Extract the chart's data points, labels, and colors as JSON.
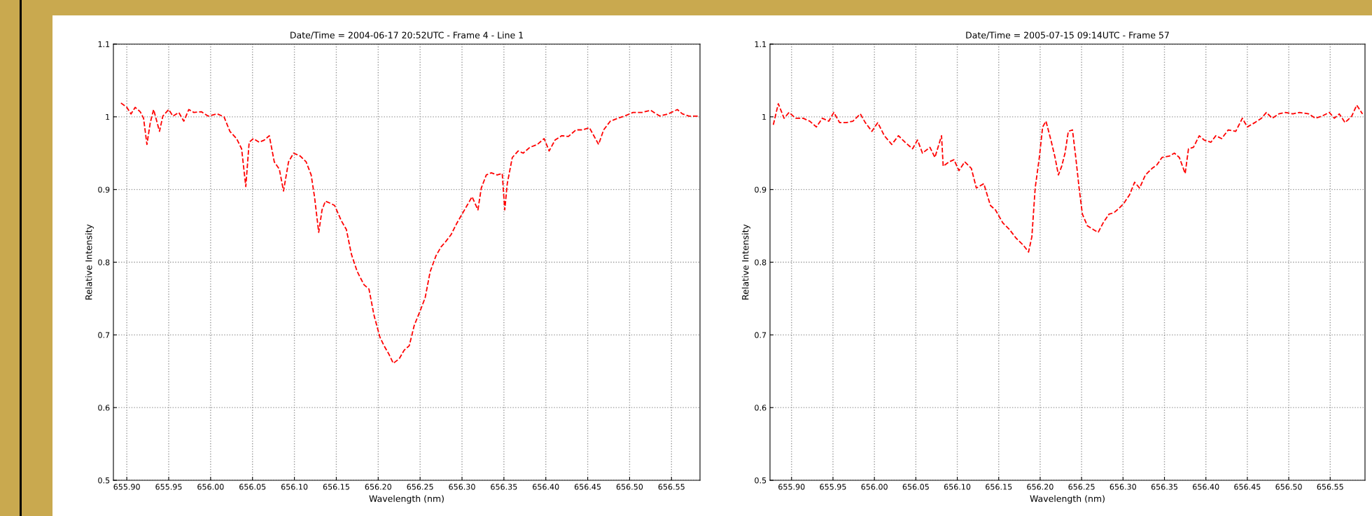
{
  "chart_data": [
    {
      "type": "line",
      "title": "Date/Time = 2004-06-17 20:52UTC - Frame 4 - Line 1",
      "xlabel": "Wavelength (nm)",
      "ylabel": "Relative Intensity",
      "grid": true,
      "line_style": "dashed",
      "xlim": [
        655.884,
        656.584
      ],
      "ylim": [
        0.5,
        1.1
      ],
      "xticks": [
        {
          "value": 655.9,
          "label": "655.90"
        },
        {
          "value": 655.95,
          "label": "655.95"
        },
        {
          "value": 656.0,
          "label": "656.00"
        },
        {
          "value": 656.05,
          "label": "656.05"
        },
        {
          "value": 656.1,
          "label": "656.10"
        },
        {
          "value": 656.15,
          "label": "656.15"
        },
        {
          "value": 656.2,
          "label": "656.20"
        },
        {
          "value": 656.25,
          "label": "656.25"
        },
        {
          "value": 656.3,
          "label": "656.30"
        },
        {
          "value": 656.35,
          "label": "656.35"
        },
        {
          "value": 656.4,
          "label": "656.40"
        },
        {
          "value": 656.45,
          "label": "656.45"
        },
        {
          "value": 656.5,
          "label": "656.50"
        },
        {
          "value": 656.55,
          "label": "656.55"
        }
      ],
      "yticks": [
        0.5,
        0.6,
        0.7,
        0.8,
        0.9,
        1,
        1.1
      ],
      "series": [
        {
          "color": "#ff0000",
          "x": [
            655.893,
            655.9,
            655.905,
            655.91,
            655.916,
            655.92,
            655.924,
            655.928,
            655.932,
            655.939,
            655.943,
            655.95,
            655.955,
            655.962,
            655.968,
            655.974,
            655.98,
            655.989,
            655.997,
            656.008,
            656.016,
            656.023,
            656.031,
            656.037,
            656.042,
            656.046,
            656.051,
            656.058,
            656.064,
            656.07,
            656.076,
            656.082,
            656.087,
            656.093,
            656.099,
            656.107,
            656.114,
            656.12,
            656.124,
            656.129,
            656.133,
            656.137,
            656.143,
            656.148,
            656.156,
            656.162,
            656.168,
            656.175,
            656.183,
            656.189,
            656.195,
            656.202,
            656.207,
            656.213,
            656.218,
            656.225,
            656.231,
            656.237,
            656.243,
            656.25,
            656.256,
            656.262,
            656.269,
            656.275,
            656.281,
            656.287,
            656.294,
            656.3,
            656.306,
            656.312,
            656.319,
            656.323,
            656.329,
            656.335,
            656.342,
            656.348,
            656.351,
            656.354,
            656.36,
            656.367,
            656.373,
            656.381,
            656.39,
            656.398,
            656.404,
            656.411,
            656.419,
            656.427,
            656.436,
            656.444,
            656.452,
            656.463,
            656.469,
            656.477,
            656.486,
            656.494,
            656.504,
            656.515,
            656.525,
            656.536,
            656.546,
            656.557,
            656.563,
            656.571,
            656.582
          ],
          "values": [
            1.019,
            1.013,
            1.004,
            1.013,
            1.007,
            0.998,
            0.962,
            0.992,
            1.01,
            0.98,
            1.001,
            1.01,
            1.001,
            1.006,
            0.994,
            1.01,
            1.006,
            1.007,
            1.001,
            1.004,
            1.0,
            0.98,
            0.97,
            0.956,
            0.904,
            0.965,
            0.97,
            0.965,
            0.968,
            0.974,
            0.938,
            0.928,
            0.898,
            0.938,
            0.95,
            0.946,
            0.938,
            0.92,
            0.89,
            0.841,
            0.872,
            0.884,
            0.881,
            0.878,
            0.857,
            0.845,
            0.811,
            0.787,
            0.769,
            0.763,
            0.727,
            0.697,
            0.685,
            0.673,
            0.661,
            0.667,
            0.679,
            0.685,
            0.713,
            0.733,
            0.751,
            0.787,
            0.809,
            0.821,
            0.829,
            0.838,
            0.854,
            0.866,
            0.878,
            0.89,
            0.872,
            0.902,
            0.92,
            0.923,
            0.92,
            0.922,
            0.872,
            0.908,
            0.944,
            0.953,
            0.95,
            0.958,
            0.962,
            0.97,
            0.953,
            0.968,
            0.974,
            0.973,
            0.982,
            0.982,
            0.985,
            0.962,
            0.982,
            0.994,
            0.998,
            1.001,
            1.006,
            1.006,
            1.009,
            1.001,
            1.004,
            1.01,
            1.004,
            1.001,
            1.001
          ]
        }
      ]
    },
    {
      "type": "line",
      "title": "Date/Time = 2005-07-15 09:14UTC - Frame 57",
      "xlabel": "Wavelength (nm)",
      "ylabel": "Relative Intensity",
      "grid": true,
      "line_style": "dashed",
      "xlim": [
        655.874,
        656.592
      ],
      "ylim": [
        0.5,
        1.1
      ],
      "xticks": [
        {
          "value": 655.9,
          "label": "655.90"
        },
        {
          "value": 655.95,
          "label": "655.95"
        },
        {
          "value": 656.0,
          "label": "656.00"
        },
        {
          "value": 656.05,
          "label": "656.05"
        },
        {
          "value": 656.1,
          "label": "656.10"
        },
        {
          "value": 656.15,
          "label": "656.15"
        },
        {
          "value": 656.2,
          "label": "656.20"
        },
        {
          "value": 656.25,
          "label": "656.25"
        },
        {
          "value": 656.3,
          "label": "656.30"
        },
        {
          "value": 656.35,
          "label": "656.35"
        },
        {
          "value": 656.4,
          "label": "656.40"
        },
        {
          "value": 656.45,
          "label": "656.45"
        },
        {
          "value": 656.5,
          "label": "656.50"
        },
        {
          "value": 656.55,
          "label": "656.55"
        }
      ],
      "yticks": [
        0.5,
        0.6,
        0.7,
        0.8,
        0.9,
        1,
        1.1
      ],
      "series": [
        {
          "color": "#ff0000",
          "x": [
            655.878,
            655.884,
            655.891,
            655.897,
            655.905,
            655.914,
            655.922,
            655.93,
            655.937,
            655.945,
            655.951,
            655.958,
            655.966,
            655.974,
            655.983,
            655.989,
            655.997,
            656.004,
            656.012,
            656.021,
            656.029,
            656.037,
            656.046,
            656.052,
            656.058,
            656.067,
            656.073,
            656.081,
            656.083,
            656.09,
            656.096,
            656.102,
            656.109,
            656.117,
            656.123,
            656.132,
            656.14,
            656.146,
            656.155,
            656.163,
            656.171,
            656.18,
            656.186,
            656.19,
            656.194,
            656.199,
            656.203,
            656.207,
            656.213,
            656.218,
            656.222,
            656.226,
            656.23,
            656.234,
            656.239,
            656.243,
            656.247,
            656.251,
            656.257,
            656.264,
            656.27,
            656.276,
            656.283,
            656.289,
            656.295,
            656.301,
            656.308,
            656.314,
            656.32,
            656.327,
            656.335,
            656.341,
            656.347,
            656.356,
            656.362,
            656.368,
            656.375,
            656.379,
            656.385,
            656.392,
            656.398,
            656.406,
            656.412,
            656.419,
            656.427,
            656.436,
            656.444,
            656.45,
            656.459,
            656.467,
            656.473,
            656.48,
            656.488,
            656.496,
            656.505,
            656.513,
            656.524,
            656.532,
            656.54,
            656.549,
            656.555,
            656.561,
            656.568,
            656.576,
            656.582,
            656.589
          ],
          "values": [
            0.989,
            1.018,
            0.998,
            1.006,
            0.998,
            0.998,
            0.994,
            0.986,
            0.998,
            0.994,
            1.006,
            0.992,
            0.992,
            0.994,
            1.004,
            0.992,
            0.98,
            0.992,
            0.974,
            0.962,
            0.974,
            0.965,
            0.956,
            0.968,
            0.95,
            0.958,
            0.944,
            0.974,
            0.932,
            0.938,
            0.941,
            0.926,
            0.938,
            0.929,
            0.902,
            0.908,
            0.878,
            0.872,
            0.854,
            0.845,
            0.833,
            0.823,
            0.814,
            0.835,
            0.902,
            0.944,
            0.986,
            0.994,
            0.968,
            0.944,
            0.92,
            0.932,
            0.95,
            0.98,
            0.982,
            0.944,
            0.902,
            0.866,
            0.85,
            0.845,
            0.841,
            0.854,
            0.866,
            0.868,
            0.874,
            0.881,
            0.893,
            0.91,
            0.902,
            0.92,
            0.929,
            0.934,
            0.944,
            0.946,
            0.95,
            0.944,
            0.922,
            0.956,
            0.958,
            0.974,
            0.968,
            0.965,
            0.974,
            0.97,
            0.982,
            0.98,
            0.998,
            0.986,
            0.992,
            0.998,
            1.006,
            0.998,
            1.004,
            1.006,
            1.004,
            1.006,
            1.004,
            0.998,
            1.001,
            1.006,
            0.998,
            1.004,
            0.992,
            1.001,
            1.016,
            1.004
          ]
        }
      ]
    }
  ]
}
